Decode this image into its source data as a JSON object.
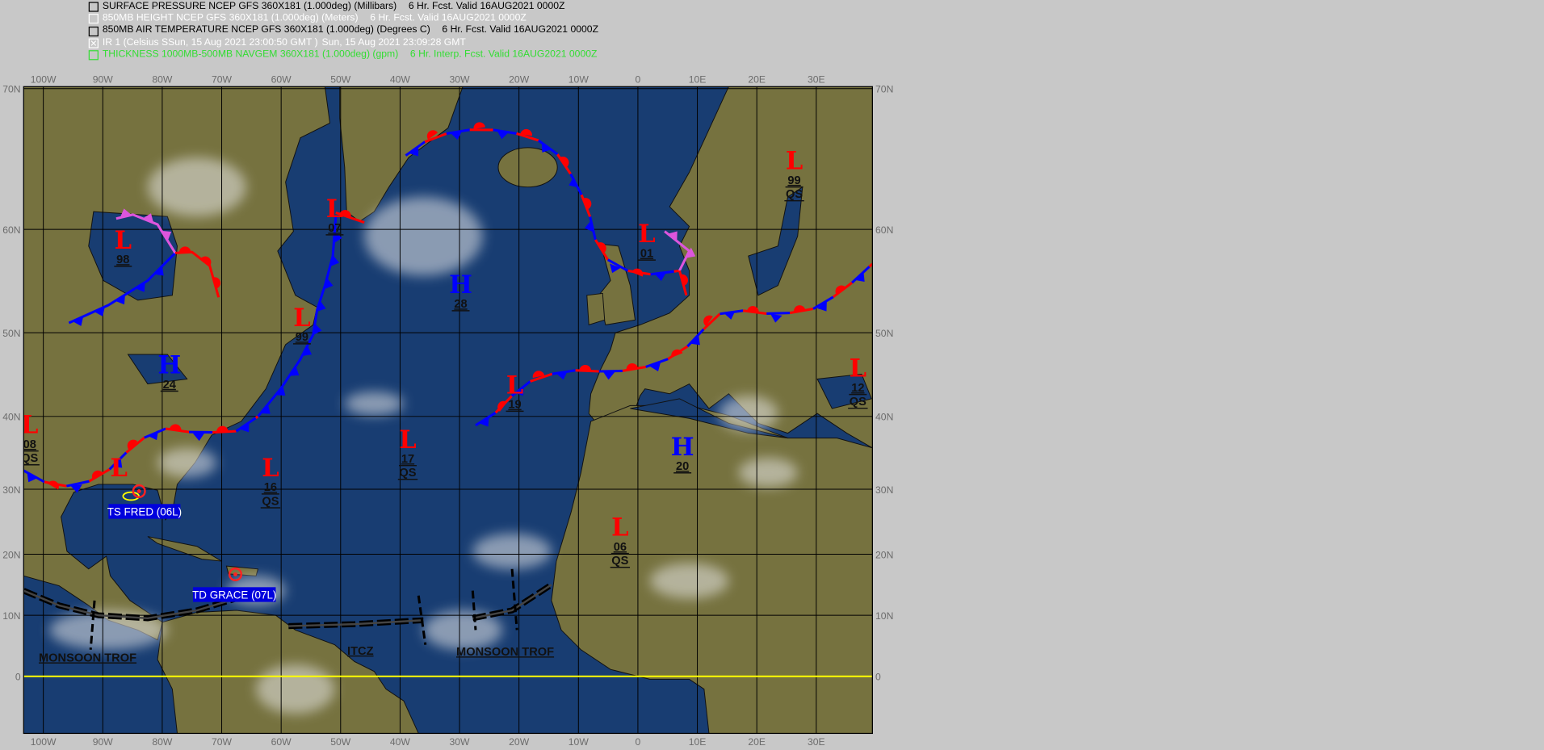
{
  "legend": [
    {
      "checked": false,
      "color": "#000000",
      "text": "SURFACE PRESSURE NCEP GFS 360X181 (1.000deg) (Millibars)",
      "valid": "6 Hr. Fcst. Valid 16AUG2021 0000Z"
    },
    {
      "checked": false,
      "color": "#ffffff",
      "text": "850MB HEIGHT NCEP GFS 360X181 (1.000deg) (Meters)",
      "valid": "6 Hr. Fcst. Valid 16AUG2021 0000Z"
    },
    {
      "checked": false,
      "color": "#000000",
      "text": "850MB AIR TEMPERATURE NCEP GFS 360X181 (1.000deg) (Degrees C)",
      "valid": "6 Hr. Fcst. Valid 16AUG2021 0000Z"
    },
    {
      "checked": true,
      "color": "#ffffff",
      "text": "IR 1 (Celsius SSun, 15 Aug 2021 23:00:50 GMT )",
      "valid": "Sun, 15 Aug 2021 23:09:28 GMT"
    },
    {
      "checked": false,
      "color": "#33dd33",
      "text": "THICKNESS 1000MB-500MB NAVGEM 360X181 (1.000deg) (gpm)",
      "valid": "6 Hr. Interp. Fcst. Valid 16AUG2021 0000Z"
    }
  ],
  "map": {
    "lon_labels": [
      {
        "lon": -100,
        "t": "100W"
      },
      {
        "lon": -90,
        "t": "90W"
      },
      {
        "lon": -80,
        "t": "80W"
      },
      {
        "lon": -70,
        "t": "70W"
      },
      {
        "lon": -60,
        "t": "60W"
      },
      {
        "lon": -50,
        "t": "50W"
      },
      {
        "lon": -40,
        "t": "40W"
      },
      {
        "lon": -30,
        "t": "30W"
      },
      {
        "lon": -20,
        "t": "20W"
      },
      {
        "lon": -10,
        "t": "10W"
      },
      {
        "lon": 0,
        "t": "0"
      },
      {
        "lon": 10,
        "t": "10E"
      },
      {
        "lon": 20,
        "t": "20E"
      },
      {
        "lon": 30,
        "t": "30E"
      }
    ],
    "lat_labels": [
      {
        "lat": 70,
        "t": "70N"
      },
      {
        "lat": 60,
        "t": "60N"
      },
      {
        "lat": 50,
        "t": "50N"
      },
      {
        "lat": 40,
        "t": "40N"
      },
      {
        "lat": 30,
        "t": "30N"
      },
      {
        "lat": 20,
        "t": "20N"
      },
      {
        "lat": 10,
        "t": "10N"
      },
      {
        "lat": 0,
        "t": "0"
      }
    ],
    "colors": {
      "ocean": "#183d72",
      "land": "#76723f",
      "grid": "#000000",
      "equator": "#ffff00",
      "low": "#ff0000",
      "high": "#0000ff",
      "cold_front": "#0000ff",
      "warm_front": "#ff0000",
      "occluded": "#dd55dd",
      "storm_box": "#0000dd"
    },
    "centers": [
      {
        "type": "L",
        "lat": 59,
        "lon": -86.6,
        "value": "98"
      },
      {
        "type": "L",
        "lat": 61.5,
        "lon": -51,
        "value": "07"
      },
      {
        "type": "L",
        "lat": 51.5,
        "lon": -56.5,
        "value": "99"
      },
      {
        "type": "H",
        "lat": 54.7,
        "lon": -29.8,
        "value": "28"
      },
      {
        "type": "L",
        "lat": 59.6,
        "lon": 1.5,
        "value": "01"
      },
      {
        "type": "L",
        "lat": 64.9,
        "lon": 26.3,
        "value": "99",
        "qs": "QS"
      },
      {
        "type": "H",
        "lat": 46.2,
        "lon": -78.8,
        "value": "24"
      },
      {
        "type": "L",
        "lat": 43.8,
        "lon": -20.7,
        "value": "19"
      },
      {
        "type": "L",
        "lat": 45.8,
        "lon": 37,
        "value": "12",
        "qs": "QS"
      },
      {
        "type": "L",
        "lat": 38.9,
        "lon": -102.3,
        "value": "08",
        "qs": "QS"
      },
      {
        "type": "L",
        "lat": 33,
        "lon": -87.3,
        "value": ""
      },
      {
        "type": "L",
        "lat": 33,
        "lon": -61.8,
        "value": "16",
        "qs": "QS"
      },
      {
        "type": "L",
        "lat": 36.9,
        "lon": -38.7,
        "value": "17",
        "qs": "QS"
      },
      {
        "type": "H",
        "lat": 35.9,
        "lon": 7.5,
        "value": "20"
      },
      {
        "type": "L",
        "lat": 24.2,
        "lon": -3,
        "value": "06",
        "qs": "QS"
      }
    ],
    "storms": [
      {
        "name": "TS FRED (06L)",
        "lat": 29.7,
        "lon": -83.9
      },
      {
        "name": "TD GRACE (07L)",
        "lat": 16.7,
        "lon": -67.7
      }
    ],
    "labels": [
      "MONSOON TROF",
      "ITCZ",
      "MONSOON TROF"
    ]
  }
}
